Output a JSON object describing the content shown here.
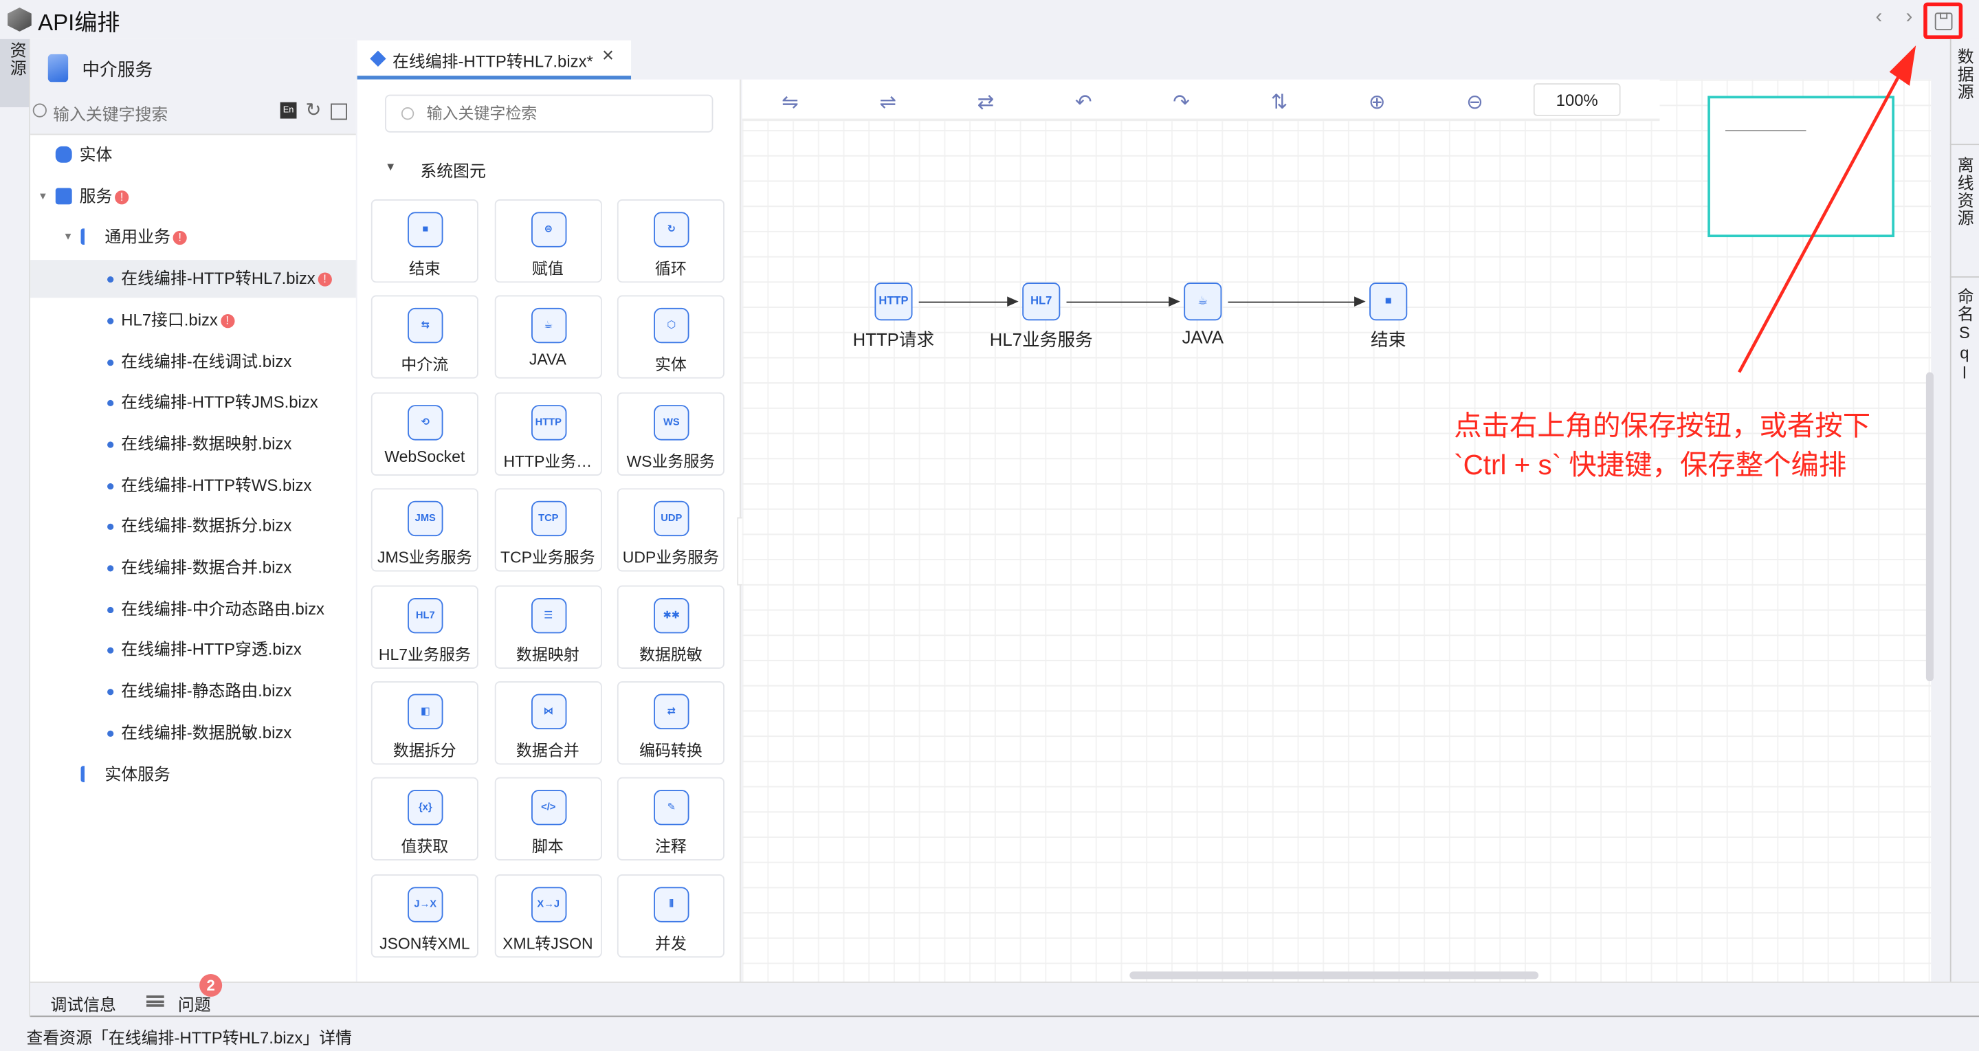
{
  "app": {
    "title": "API编排",
    "left_tab": "资源",
    "right_tabs": [
      "数据源",
      "离线资源",
      "命名Sql"
    ]
  },
  "colors": {
    "accent": "#3c78e6",
    "error_badge": "#f26a6a",
    "annotation": "#ff2a1f",
    "minimap_border": "#2ecdc4"
  },
  "left_panel": {
    "header": "中介服务",
    "search_placeholder": "输入关键字搜索",
    "tree": [
      {
        "label": "实体",
        "level": 0,
        "icon": "database-icon"
      },
      {
        "label": "服务",
        "level": 0,
        "icon": "layers-icon",
        "error": true,
        "expanded": true
      },
      {
        "label": "通用业务",
        "level": 1,
        "icon": "tree-icon",
        "error": true,
        "expanded": true
      },
      {
        "label": "在线编排-HTTP转HL7.bizx",
        "level": 2,
        "error": true,
        "selected": true
      },
      {
        "label": "HL7接口.bizx",
        "level": 2,
        "error": true
      },
      {
        "label": "在线编排-在线调试.bizx",
        "level": 2
      },
      {
        "label": "在线编排-HTTP转JMS.bizx",
        "level": 2
      },
      {
        "label": "在线编排-数据映射.bizx",
        "level": 2
      },
      {
        "label": "在线编排-HTTP转WS.bizx",
        "level": 2
      },
      {
        "label": "在线编排-数据拆分.bizx",
        "level": 2
      },
      {
        "label": "在线编排-数据合并.bizx",
        "level": 2
      },
      {
        "label": "在线编排-中介动态路由.bizx",
        "level": 2
      },
      {
        "label": "在线编排-HTTP穿透.bizx",
        "level": 2
      },
      {
        "label": "在线编排-静态路由.bizx",
        "level": 2
      },
      {
        "label": "在线编排-数据脱敏.bizx",
        "level": 2
      },
      {
        "label": "实体服务",
        "level": 1,
        "icon": "tree-icon"
      }
    ]
  },
  "editor_tab": {
    "label": "在线编排-HTTP转HL7.bizx*",
    "close": "×"
  },
  "palette": {
    "search_placeholder": "输入关键字检索",
    "section": "系统图元",
    "items": [
      {
        "label": "结束",
        "glyph": "■"
      },
      {
        "label": "赋值",
        "glyph": "⊜"
      },
      {
        "label": "循环",
        "glyph": "↻"
      },
      {
        "label": "中介流",
        "glyph": "⇆"
      },
      {
        "label": "JAVA",
        "glyph": "☕"
      },
      {
        "label": "实体",
        "glyph": "⬡"
      },
      {
        "label": "WebSocket",
        "glyph": "⟲"
      },
      {
        "label": "HTTP业务…",
        "glyph": "HTTP"
      },
      {
        "label": "WS业务服务",
        "glyph": "WS"
      },
      {
        "label": "JMS业务服务",
        "glyph": "JMS"
      },
      {
        "label": "TCP业务服务",
        "glyph": "TCP"
      },
      {
        "label": "UDP业务服务",
        "glyph": "UDP"
      },
      {
        "label": "HL7业务服务",
        "glyph": "HL7"
      },
      {
        "label": "数据映射",
        "glyph": "☰"
      },
      {
        "label": "数据脱敏",
        "glyph": "✱✱"
      },
      {
        "label": "数据拆分",
        "glyph": "◧"
      },
      {
        "label": "数据合并",
        "glyph": "⋈"
      },
      {
        "label": "编码转换",
        "glyph": "⇄"
      },
      {
        "label": "值获取",
        "glyph": "{x}"
      },
      {
        "label": "脚本",
        "glyph": "</>"
      },
      {
        "label": "注释",
        "glyph": "✎"
      },
      {
        "label": "JSON转XML",
        "glyph": "J→X"
      },
      {
        "label": "XML转JSON",
        "glyph": "X→J"
      },
      {
        "label": "并发",
        "glyph": "⫴"
      }
    ]
  },
  "toolbar": {
    "zoom": "100%",
    "buttons": [
      "align-left-icon",
      "align-center-icon",
      "align-right-icon",
      "undo-icon",
      "redo-icon",
      "swap-icon",
      "zoom-in-icon",
      "zoom-out-icon"
    ]
  },
  "flow": {
    "nodes": [
      {
        "label": "HTTP请求",
        "glyph": "HTTP"
      },
      {
        "label": "HL7业务服务",
        "glyph": "HL7"
      },
      {
        "label": "JAVA",
        "glyph": "☕"
      },
      {
        "label": "结束",
        "glyph": "■"
      }
    ]
  },
  "annotation": {
    "line1": "点击右上角的保存按钮，或者按下",
    "line2": "`Ctrl + s` 快捷键，保存整个编排"
  },
  "bottom": {
    "debug": "调试信息",
    "problems": "问题",
    "problem_count": "2"
  },
  "status": "查看资源「在线编排-HTTP转HL7.bizx」详情"
}
